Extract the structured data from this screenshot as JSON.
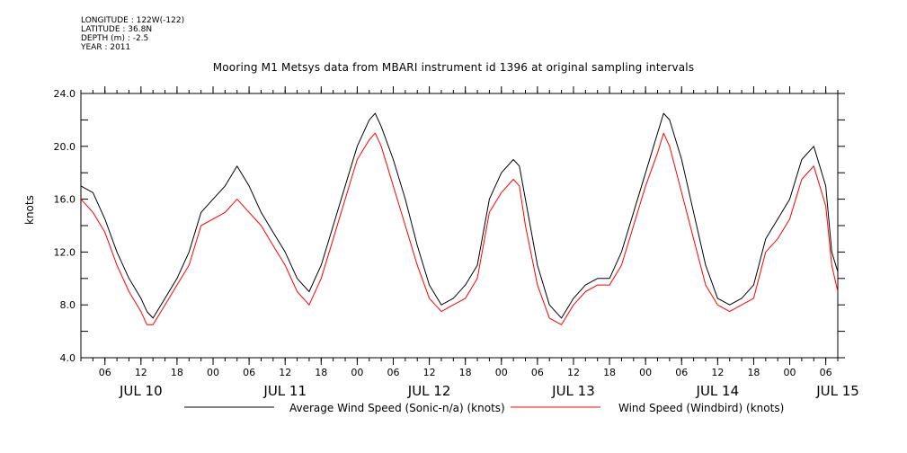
{
  "header": {
    "meta_lines": [
      "LONGITUDE : 122W(-122)",
      "LATITUDE : 36.8N",
      "DEPTH (m) : -2.5",
      "YEAR : 2011"
    ],
    "title": "Mooring M1 Metsys data from MBARI instrument id 1396 at original sampling intervals"
  },
  "chart_data": {
    "type": "line",
    "title": "Mooring M1 Metsys data from MBARI instrument id 1396 at original sampling intervals",
    "ylabel": "knots",
    "xlabel": "",
    "ylim": [
      4.0,
      24.0
    ],
    "y_ticks": [
      "4.0",
      "8.0",
      "12.0",
      "16.0",
      "20.0",
      "24.0"
    ],
    "x_start_hour": 2,
    "x_end_hour": 128,
    "x_hour_ticks": [
      {
        "hour": 6,
        "label": "06"
      },
      {
        "hour": 12,
        "label": "12"
      },
      {
        "hour": 18,
        "label": "18"
      },
      {
        "hour": 24,
        "label": "00"
      },
      {
        "hour": 30,
        "label": "06"
      },
      {
        "hour": 36,
        "label": "12"
      },
      {
        "hour": 42,
        "label": "18"
      },
      {
        "hour": 48,
        "label": "00"
      },
      {
        "hour": 54,
        "label": "06"
      },
      {
        "hour": 60,
        "label": "12"
      },
      {
        "hour": 66,
        "label": "18"
      },
      {
        "hour": 72,
        "label": "00"
      },
      {
        "hour": 78,
        "label": "06"
      },
      {
        "hour": 84,
        "label": "12"
      },
      {
        "hour": 90,
        "label": "18"
      },
      {
        "hour": 96,
        "label": "00"
      },
      {
        "hour": 102,
        "label": "06"
      },
      {
        "hour": 108,
        "label": "12"
      },
      {
        "hour": 114,
        "label": "18"
      },
      {
        "hour": 120,
        "label": "00"
      },
      {
        "hour": 126,
        "label": "06"
      }
    ],
    "day_labels": [
      {
        "hour": 12,
        "label": "JUL 10"
      },
      {
        "hour": 36,
        "label": "JUL 11"
      },
      {
        "hour": 60,
        "label": "JUL 12"
      },
      {
        "hour": 84,
        "label": "JUL 13"
      },
      {
        "hour": 108,
        "label": "JUL 14"
      },
      {
        "hour": 128,
        "label": "JUL 15"
      }
    ],
    "series": [
      {
        "name": "Average Wind Speed (Sonic-n/a) (knots)",
        "color": "#000000",
        "x": [
          2,
          4,
          6,
          8,
          10,
          12,
          13,
          14,
          16,
          18,
          20,
          22,
          24,
          26,
          28,
          30,
          32,
          34,
          36,
          38,
          40,
          42,
          44,
          46,
          48,
          50,
          51,
          52,
          54,
          56,
          58,
          60,
          62,
          64,
          66,
          68,
          70,
          72,
          74,
          75,
          76,
          78,
          80,
          82,
          84,
          86,
          88,
          90,
          92,
          94,
          96,
          98,
          99,
          100,
          102,
          104,
          106,
          108,
          110,
          112,
          114,
          116,
          118,
          120,
          122,
          124,
          126,
          127,
          128
        ],
        "y": [
          17.0,
          16.5,
          14.5,
          12.0,
          10.0,
          8.5,
          7.5,
          7.0,
          8.5,
          10.0,
          12.0,
          15.0,
          16.0,
          17.0,
          18.5,
          17.0,
          15.0,
          13.5,
          12.0,
          10.0,
          9.0,
          11.0,
          14.0,
          17.0,
          20.0,
          22.0,
          22.5,
          21.5,
          19.0,
          16.0,
          12.5,
          9.5,
          8.0,
          8.5,
          9.5,
          11.0,
          16.0,
          18.0,
          19.0,
          18.5,
          16.0,
          11.0,
          8.0,
          7.0,
          8.5,
          9.5,
          10.0,
          10.0,
          12.0,
          15.0,
          18.0,
          21.0,
          22.5,
          22.0,
          19.0,
          15.0,
          11.0,
          8.5,
          8.0,
          8.5,
          9.5,
          13.0,
          14.5,
          16.0,
          19.0,
          20.0,
          17.0,
          12.0,
          10.5
        ]
      },
      {
        "name": "Wind Speed (Windbird) (knots)",
        "color": "#ff0000",
        "x": [
          2,
          4,
          6,
          8,
          10,
          12,
          13,
          14,
          16,
          18,
          20,
          22,
          24,
          26,
          28,
          30,
          32,
          34,
          36,
          38,
          40,
          42,
          44,
          46,
          48,
          50,
          51,
          52,
          54,
          56,
          58,
          60,
          62,
          64,
          66,
          68,
          70,
          72,
          74,
          75,
          76,
          78,
          80,
          82,
          84,
          86,
          88,
          90,
          92,
          94,
          96,
          98,
          99,
          100,
          102,
          104,
          106,
          108,
          110,
          112,
          114,
          116,
          118,
          120,
          122,
          124,
          126,
          127,
          128
        ],
        "y": [
          16.0,
          15.0,
          13.5,
          11.0,
          9.0,
          7.5,
          6.5,
          6.5,
          8.0,
          9.5,
          11.0,
          14.0,
          14.5,
          15.0,
          16.0,
          15.0,
          14.0,
          12.5,
          11.0,
          9.0,
          8.0,
          10.0,
          13.0,
          16.0,
          19.0,
          20.5,
          21.0,
          20.0,
          17.0,
          14.0,
          11.0,
          8.5,
          7.5,
          8.0,
          8.5,
          10.0,
          15.0,
          16.5,
          17.5,
          17.0,
          14.0,
          9.5,
          7.0,
          6.5,
          8.0,
          9.0,
          9.5,
          9.5,
          11.0,
          14.0,
          17.0,
          19.5,
          21.0,
          20.0,
          16.5,
          13.0,
          9.5,
          8.0,
          7.5,
          8.0,
          8.5,
          12.0,
          13.0,
          14.5,
          17.5,
          18.5,
          15.5,
          11.0,
          9.0
        ]
      }
    ]
  }
}
